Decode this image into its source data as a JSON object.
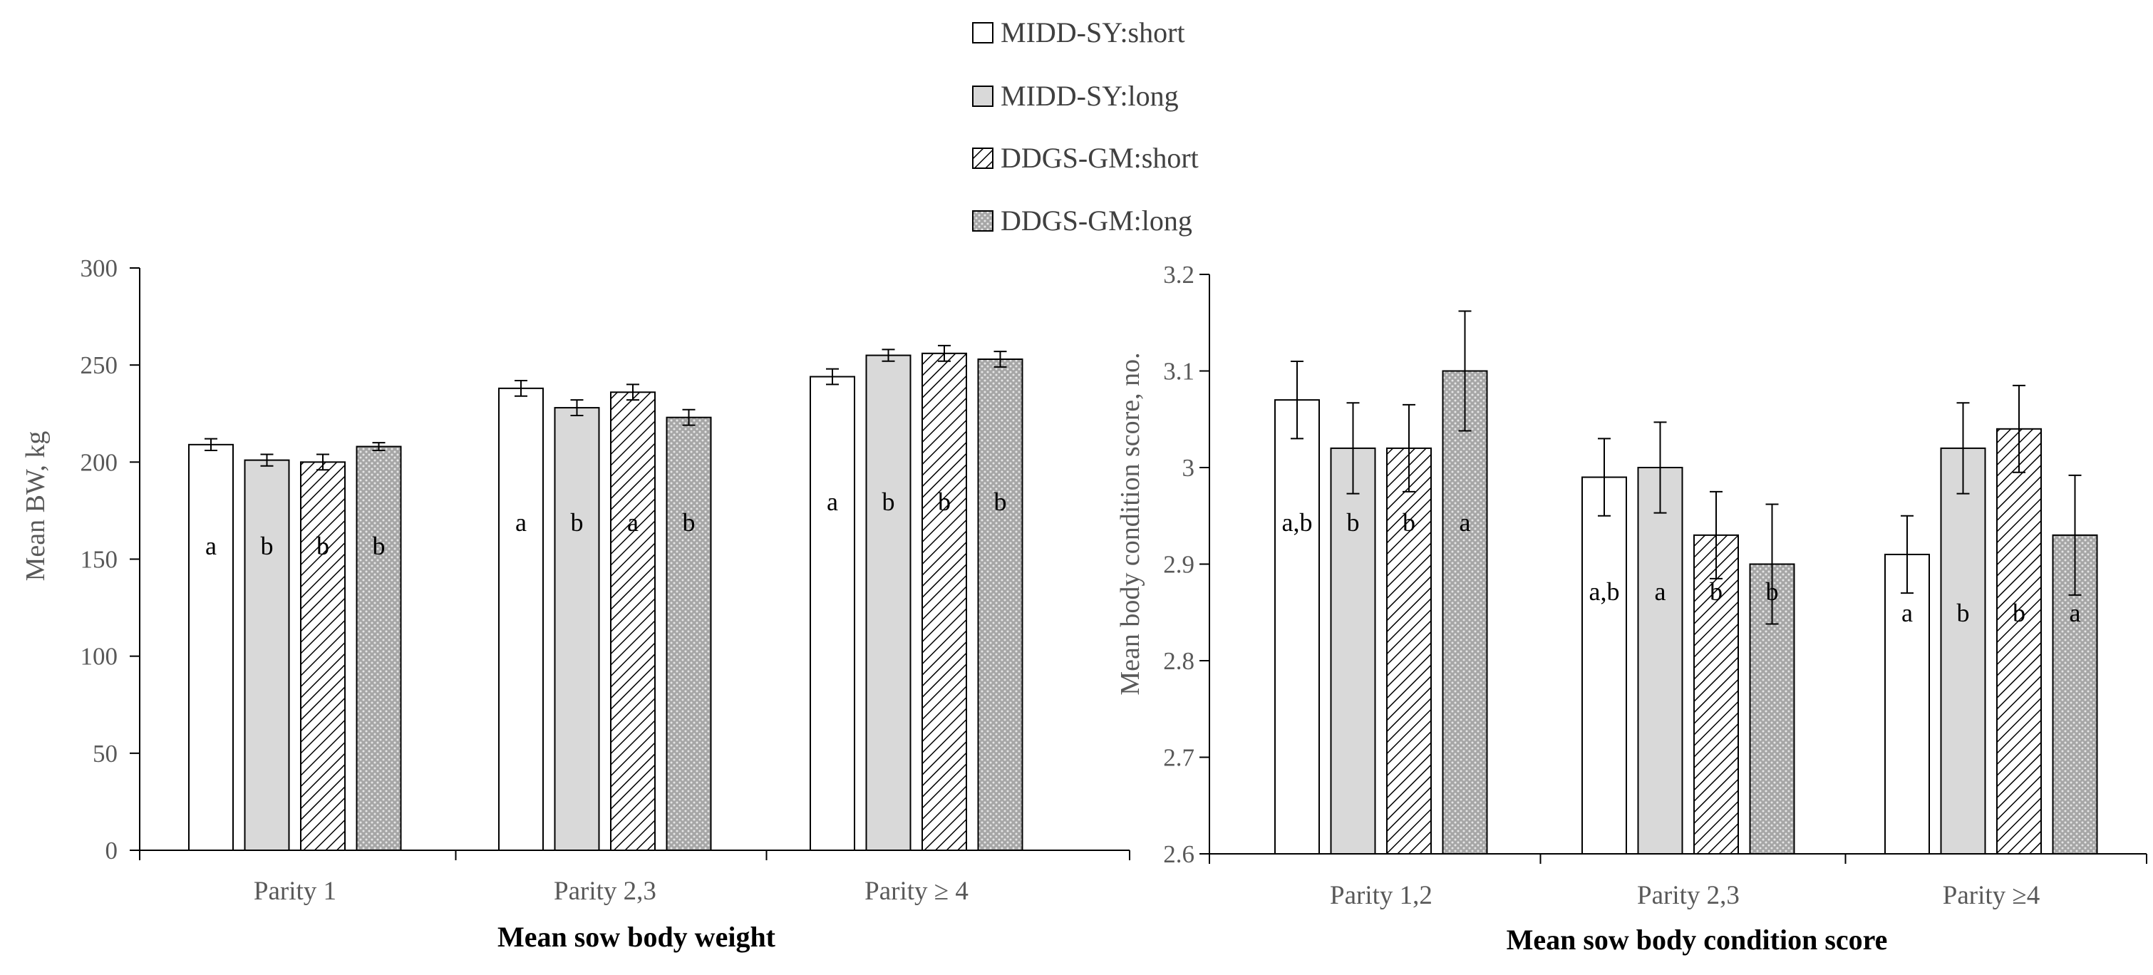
{
  "legend": [
    {
      "label": "MIDD-SY:short",
      "fill": "white"
    },
    {
      "label": "MIDD-SY:long",
      "fill": "gray"
    },
    {
      "label": "DDGS-GM:short",
      "fill": "hatch"
    },
    {
      "label": "DDGS-GM:long",
      "fill": "dots"
    }
  ],
  "colors": {
    "bar_gray": "#d9d9d9",
    "dot_bg": "#a6a6a6",
    "stroke": "#000000",
    "axis_text": "#595959"
  },
  "chart_data": [
    {
      "type": "bar",
      "title": "Mean sow body weight",
      "ylabel": "Mean BW, kg",
      "xlabel": "Mean sow body weight",
      "ylim": [
        0,
        300
      ],
      "yticks": [
        0,
        50,
        100,
        150,
        200,
        250,
        300
      ],
      "ytick_labels": [
        "0",
        "50",
        "100",
        "150",
        "200",
        "250",
        "300"
      ],
      "categories": [
        "Parity 1",
        "Parity 2,3",
        "Parity ≥ 4"
      ],
      "series": [
        {
          "name": "MIDD-SY:short",
          "values": [
            209,
            238,
            244
          ],
          "errors": [
            3,
            4,
            4
          ],
          "letters": [
            "a",
            "a",
            "a"
          ]
        },
        {
          "name": "MIDD-SY:long",
          "values": [
            201,
            228,
            255
          ],
          "errors": [
            3,
            4,
            3
          ],
          "letters": [
            "b",
            "b",
            "b"
          ]
        },
        {
          "name": "DDGS-GM:short",
          "values": [
            200,
            236,
            256
          ],
          "errors": [
            4,
            4,
            4
          ],
          "letters": [
            "b",
            "a",
            "b"
          ]
        },
        {
          "name": "DDGS-GM:long",
          "values": [
            208,
            223,
            253
          ],
          "errors": [
            2,
            4,
            4
          ],
          "letters": [
            "b",
            "b",
            "b"
          ]
        }
      ]
    },
    {
      "type": "bar",
      "title": "Mean sow body condition score",
      "ylabel": "Mean body condition score, no.",
      "xlabel": "Mean sow body condition score",
      "ylim": [
        2.6,
        3.2
      ],
      "yticks": [
        2.6,
        2.7,
        2.8,
        2.9,
        3.0,
        3.1,
        3.2
      ],
      "ytick_labels": [
        "2.6",
        "2.7",
        "2.8",
        "2.9",
        "3",
        "3.1",
        "3.2"
      ],
      "categories": [
        "Parity 1,2",
        "Parity 2,3",
        "Parity ≥4"
      ],
      "series": [
        {
          "name": "MIDD-SY:short",
          "values": [
            3.07,
            2.99,
            2.91
          ],
          "errors": [
            0.04,
            0.04,
            0.04
          ],
          "letters": [
            "a,b",
            "a,b",
            "a"
          ]
        },
        {
          "name": "MIDD-SY:long",
          "values": [
            3.02,
            3.0,
            3.02
          ],
          "errors": [
            0.047,
            0.047,
            0.047
          ],
          "letters": [
            "b",
            "a",
            "b"
          ]
        },
        {
          "name": "DDGS-GM:short",
          "values": [
            3.02,
            2.93,
            3.04
          ],
          "errors": [
            0.045,
            0.045,
            0.045
          ],
          "letters": [
            "b",
            "b",
            "b"
          ]
        },
        {
          "name": "DDGS-GM:long",
          "values": [
            3.1,
            2.9,
            2.93
          ],
          "errors": [
            0.062,
            0.062,
            0.062
          ],
          "letters": [
            "a",
            "b",
            "a"
          ]
        }
      ]
    }
  ]
}
